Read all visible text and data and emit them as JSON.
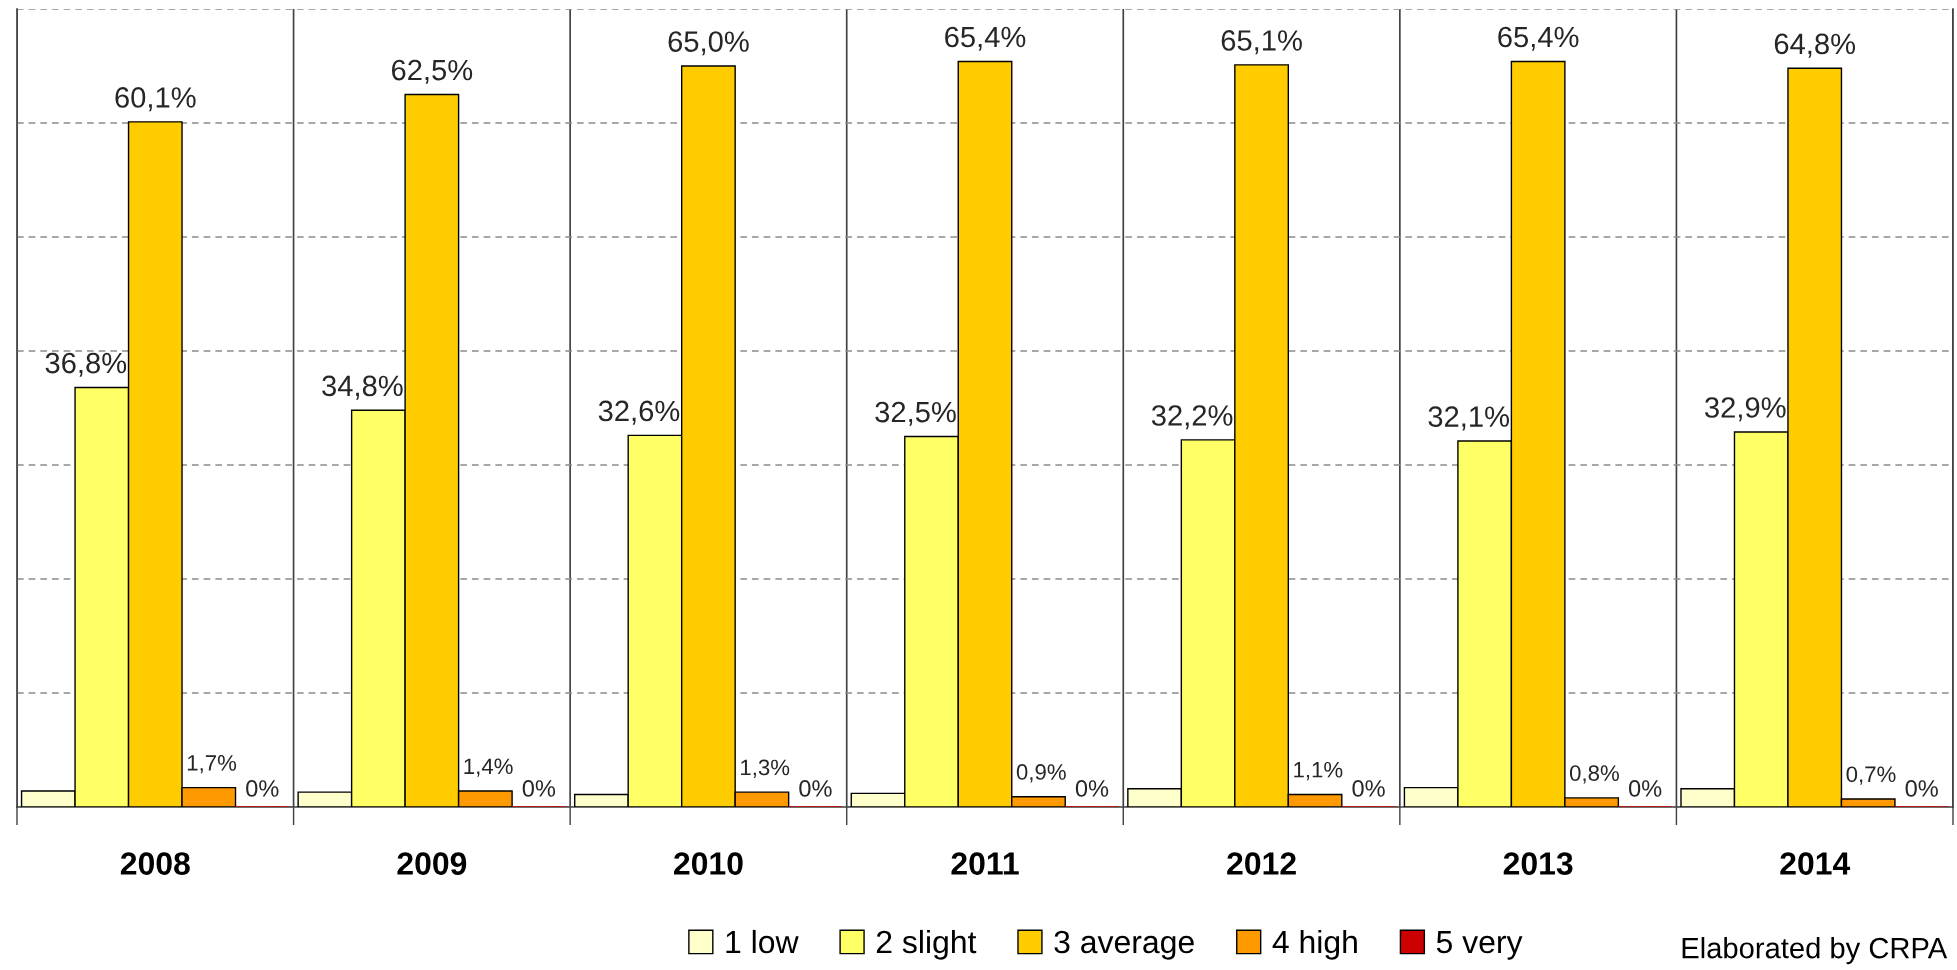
{
  "chart_data": {
    "type": "bar",
    "categories": [
      "2008",
      "2009",
      "2010",
      "2011",
      "2012",
      "2013",
      "2014"
    ],
    "series": [
      {
        "name": "1 low",
        "color": "#ffffcc",
        "values": [
          1.4,
          1.3,
          1.1,
          1.2,
          1.6,
          1.7,
          1.6
        ]
      },
      {
        "name": "2 slight",
        "color": "#ffff66",
        "values": [
          36.8,
          34.8,
          32.6,
          32.5,
          32.2,
          32.1,
          32.9
        ],
        "value_labels": [
          "36,8%",
          "34,8%",
          "32,6%",
          "32,5%",
          "32,2%",
          "32,1%",
          "32,9%"
        ]
      },
      {
        "name": "3 average",
        "color": "#ffcc00",
        "values": [
          60.1,
          62.5,
          65.0,
          65.4,
          65.1,
          65.4,
          64.8
        ],
        "value_labels": [
          "60,1%",
          "62,5%",
          "65,0%",
          "65,4%",
          "65,1%",
          "65,4%",
          "64,8%"
        ]
      },
      {
        "name": "4 high",
        "color": "#ff9900",
        "values": [
          1.7,
          1.4,
          1.3,
          0.9,
          1.1,
          0.8,
          0.7
        ],
        "value_labels": [
          "1,7%",
          "1,4%",
          "1,3%",
          "0,9%",
          "1,1%",
          "0,8%",
          "0,7%"
        ]
      },
      {
        "name": "5 very",
        "color": "#cc0000",
        "values": [
          0,
          0,
          0,
          0,
          0,
          0,
          0
        ],
        "value_labels": [
          "0%",
          "0%",
          "0%",
          "0%",
          "0%",
          "0%",
          "0%"
        ]
      }
    ],
    "ylim": [
      0,
      70
    ],
    "yticks": [
      {
        "value": 0,
        "label": null
      },
      {
        "value": 10,
        "label": null
      },
      {
        "value": 20,
        "label": null
      },
      {
        "value": 30,
        "label": null
      },
      {
        "value": 40,
        "label": null
      },
      {
        "value": 50,
        "label": null
      },
      {
        "value": 60,
        "label": null
      },
      {
        "value": 70,
        "label": null
      }
    ],
    "tick_labels": "x",
    "grid": true,
    "legend": "bottom",
    "annotations": [
      "Elaborated by CRPA"
    ]
  }
}
